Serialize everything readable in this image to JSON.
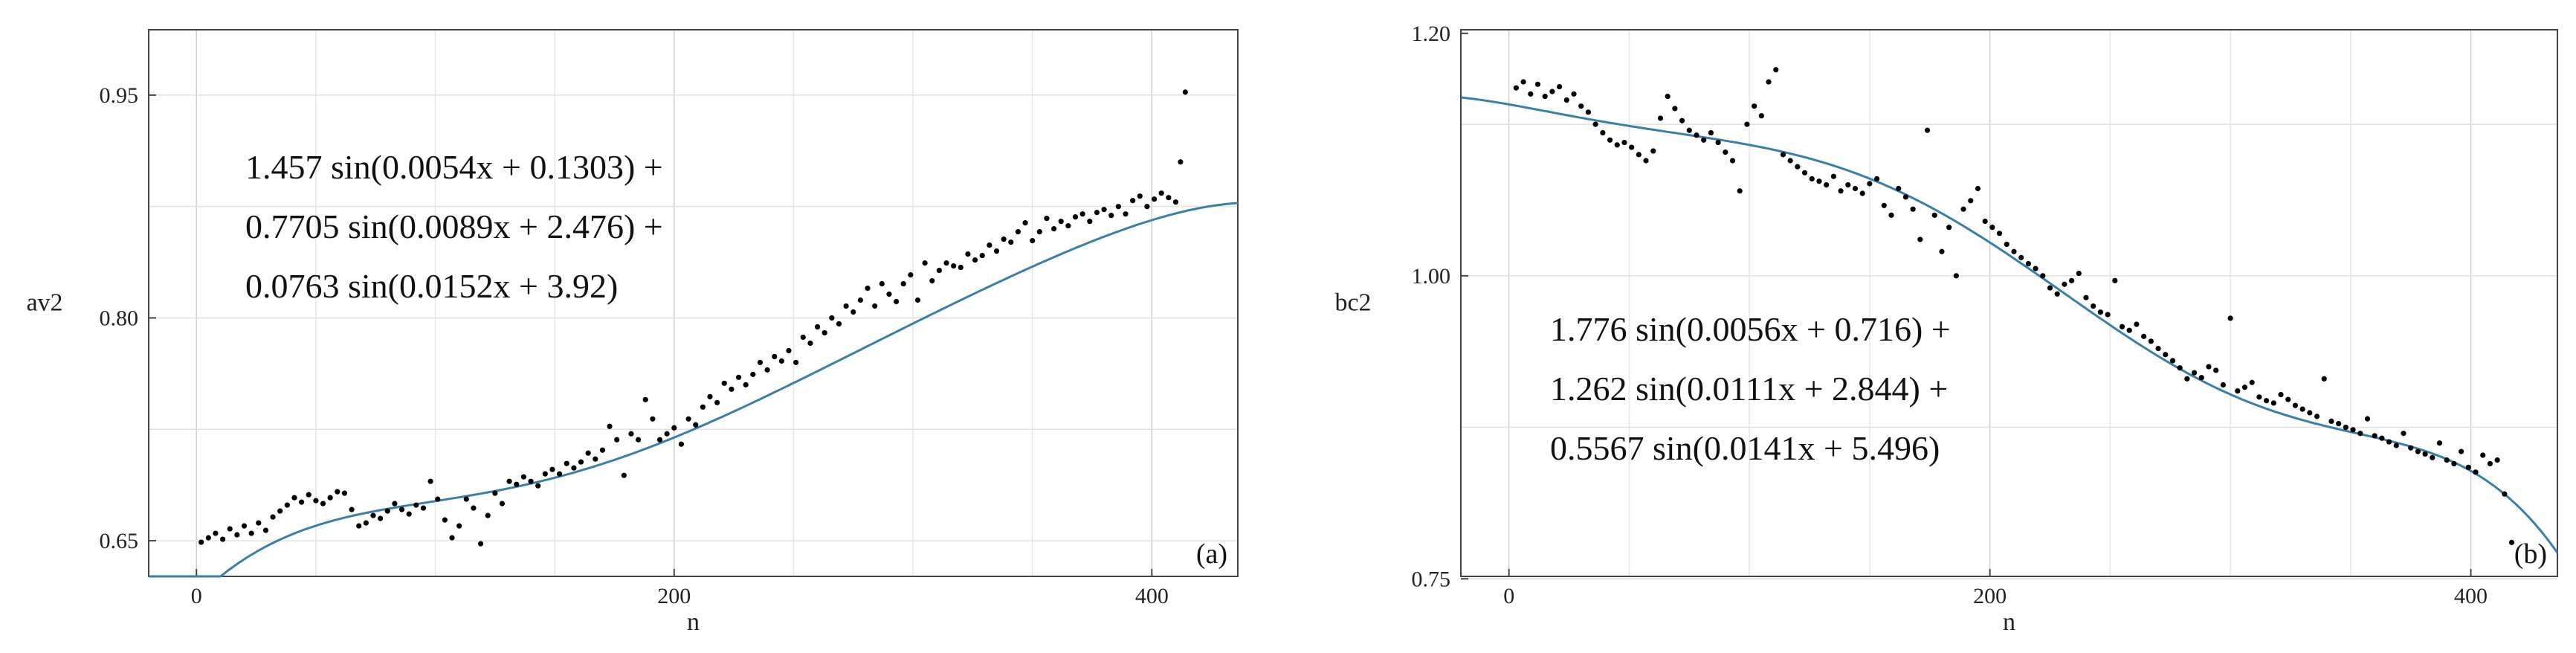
{
  "chart_data": [
    {
      "type": "scatter",
      "panel_label": "(a)",
      "xlabel": "n",
      "ylabel": "av2",
      "x_ticks": [
        0,
        200,
        400
      ],
      "y_ticks": [
        0.65,
        0.8,
        0.95
      ],
      "x_tick_labels": [
        "0",
        "200",
        "400"
      ],
      "y_tick_labels": [
        "0.65",
        "0.80",
        "0.95"
      ],
      "xlim": [
        -20,
        436
      ],
      "ylim": [
        0.626,
        0.994
      ],
      "grid": true,
      "equation_lines": [
        "1.457 sin(0.0054x + 0.1303) +",
        "0.7705 sin(0.0089x + 2.476) +",
        "0.0763 sin(0.0152x + 3.92)"
      ],
      "fit": {
        "terms": [
          [
            1.457,
            0.0054,
            0.1303
          ],
          [
            0.7705,
            0.0089,
            2.476
          ],
          [
            0.0763,
            0.0152,
            3.92
          ]
        ],
        "color": "#3a7fa8"
      },
      "points": {
        "color": "#000000",
        "x": [
          2,
          5,
          8,
          11,
          14,
          17,
          20,
          23,
          26,
          29,
          32,
          35,
          38,
          41,
          44,
          47,
          50,
          53,
          56,
          59,
          62,
          65,
          68,
          71,
          74,
          77,
          80,
          83,
          86,
          89,
          92,
          95,
          98,
          101,
          104,
          107,
          110,
          113,
          116,
          119,
          122,
          125,
          128,
          131,
          134,
          137,
          140,
          143,
          146,
          149,
          152,
          155,
          158,
          161,
          164,
          167,
          170,
          173,
          176,
          179,
          182,
          185,
          188,
          191,
          194,
          197,
          200,
          203,
          206,
          209,
          212,
          215,
          218,
          221,
          224,
          227,
          230,
          233,
          236,
          239,
          242,
          245,
          248,
          251,
          254,
          257,
          260,
          263,
          266,
          269,
          272,
          275,
          278,
          281,
          284,
          287,
          290,
          293,
          296,
          299,
          302,
          305,
          308,
          311,
          314,
          317,
          320,
          323,
          326,
          329,
          332,
          335,
          338,
          341,
          344,
          347,
          350,
          353,
          356,
          359,
          362,
          365,
          368,
          371,
          374,
          377,
          380,
          383,
          386,
          389,
          392,
          395,
          398,
          401,
          404,
          407,
          410,
          412,
          414
        ],
        "y": [
          0.649,
          0.652,
          0.655,
          0.651,
          0.658,
          0.654,
          0.66,
          0.655,
          0.662,
          0.657,
          0.666,
          0.67,
          0.674,
          0.679,
          0.676,
          0.681,
          0.677,
          0.675,
          0.679,
          0.683,
          0.682,
          0.671,
          0.66,
          0.662,
          0.667,
          0.665,
          0.67,
          0.675,
          0.671,
          0.668,
          0.674,
          0.672,
          0.69,
          0.678,
          0.664,
          0.652,
          0.66,
          0.678,
          0.672,
          0.648,
          0.667,
          0.682,
          0.675,
          0.69,
          0.688,
          0.693,
          0.69,
          0.687,
          0.695,
          0.698,
          0.695,
          0.702,
          0.699,
          0.703,
          0.709,
          0.705,
          0.711,
          0.727,
          0.718,
          0.694,
          0.722,
          0.718,
          0.745,
          0.732,
          0.718,
          0.722,
          0.726,
          0.715,
          0.732,
          0.728,
          0.74,
          0.747,
          0.743,
          0.756,
          0.752,
          0.76,
          0.755,
          0.762,
          0.77,
          0.765,
          0.774,
          0.771,
          0.778,
          0.77,
          0.787,
          0.783,
          0.794,
          0.79,
          0.8,
          0.796,
          0.808,
          0.804,
          0.812,
          0.82,
          0.808,
          0.823,
          0.816,
          0.811,
          0.823,
          0.829,
          0.812,
          0.837,
          0.825,
          0.832,
          0.837,
          0.835,
          0.834,
          0.843,
          0.839,
          0.842,
          0.849,
          0.845,
          0.853,
          0.851,
          0.858,
          0.864,
          0.852,
          0.858,
          0.867,
          0.86,
          0.865,
          0.862,
          0.868,
          0.87,
          0.865,
          0.871,
          0.873,
          0.869,
          0.875,
          0.87,
          0.879,
          0.882,
          0.875,
          0.88,
          0.884,
          0.881,
          0.878,
          0.905,
          0.952
        ]
      }
    },
    {
      "type": "scatter",
      "panel_label": "(b)",
      "xlabel": "n",
      "ylabel": "bc2",
      "x_ticks": [
        0,
        200,
        400
      ],
      "y_ticks": [
        0.75,
        1.0,
        1.2
      ],
      "x_tick_labels": [
        "0",
        "200",
        "400"
      ],
      "y_tick_labels": [
        "0.75",
        "1.00",
        "1.20"
      ],
      "xlim": [
        -20,
        436
      ],
      "ylim": [
        0.752,
        1.203
      ],
      "grid": true,
      "equation_lines": [
        "1.776 sin(0.0056x + 0.716) +",
        "1.262 sin(0.0111x + 2.844) +",
        "0.5567 sin(0.0141x + 5.496)"
      ],
      "fit": {
        "terms": [
          [
            1.776,
            0.0056,
            0.716
          ],
          [
            1.262,
            0.0111,
            2.844
          ],
          [
            0.5567,
            0.0141,
            5.496
          ]
        ],
        "color": "#3a7fa8"
      },
      "points": {
        "color": "#000000",
        "x": [
          3,
          6,
          9,
          12,
          15,
          18,
          21,
          24,
          27,
          30,
          33,
          36,
          39,
          42,
          45,
          48,
          51,
          54,
          57,
          60,
          63,
          66,
          69,
          72,
          75,
          78,
          81,
          84,
          87,
          90,
          93,
          96,
          99,
          102,
          105,
          108,
          111,
          114,
          117,
          120,
          123,
          126,
          129,
          132,
          135,
          138,
          141,
          144,
          147,
          150,
          153,
          156,
          159,
          162,
          165,
          168,
          171,
          174,
          177,
          180,
          183,
          186,
          189,
          192,
          195,
          198,
          201,
          204,
          207,
          210,
          213,
          216,
          219,
          222,
          225,
          228,
          231,
          234,
          237,
          240,
          243,
          246,
          249,
          252,
          255,
          258,
          261,
          264,
          267,
          270,
          273,
          276,
          279,
          282,
          285,
          288,
          291,
          294,
          297,
          300,
          303,
          306,
          309,
          312,
          315,
          318,
          321,
          324,
          327,
          330,
          333,
          336,
          339,
          342,
          345,
          348,
          351,
          354,
          357,
          360,
          363,
          366,
          369,
          372,
          375,
          378,
          381,
          384,
          387,
          390,
          393,
          396,
          399,
          402,
          405,
          408,
          411,
          414,
          417
        ],
        "y": [
          1.155,
          1.16,
          1.15,
          1.158,
          1.148,
          1.152,
          1.156,
          1.145,
          1.15,
          1.14,
          1.135,
          1.125,
          1.118,
          1.112,
          1.108,
          1.11,
          1.106,
          1.1,
          1.095,
          1.103,
          1.13,
          1.148,
          1.138,
          1.128,
          1.12,
          1.116,
          1.112,
          1.118,
          1.11,
          1.102,
          1.095,
          1.07,
          1.125,
          1.14,
          1.132,
          1.16,
          1.17,
          1.1,
          1.095,
          1.09,
          1.085,
          1.08,
          1.078,
          1.075,
          1.082,
          1.07,
          1.075,
          1.072,
          1.068,
          1.076,
          1.08,
          1.058,
          1.05,
          1.072,
          1.065,
          1.055,
          1.03,
          1.12,
          1.05,
          1.02,
          1.04,
          1.0,
          1.055,
          1.062,
          1.072,
          1.045,
          1.04,
          1.035,
          1.026,
          1.02,
          1.015,
          1.01,
          1.006,
          1.0,
          0.99,
          0.985,
          0.993,
          0.996,
          1.002,
          0.982,
          0.975,
          0.97,
          0.968,
          0.996,
          0.958,
          0.955,
          0.96,
          0.95,
          0.946,
          0.94,
          0.935,
          0.93,
          0.924,
          0.915,
          0.92,
          0.916,
          0.925,
          0.922,
          0.91,
          0.965,
          0.905,
          0.908,
          0.912,
          0.9,
          0.897,
          0.895,
          0.902,
          0.898,
          0.893,
          0.89,
          0.887,
          0.884,
          0.915,
          0.88,
          0.878,
          0.875,
          0.873,
          0.87,
          0.882,
          0.868,
          0.866,
          0.863,
          0.86,
          0.87,
          0.858,
          0.855,
          0.853,
          0.85,
          0.862,
          0.848,
          0.845,
          0.855,
          0.842,
          0.838,
          0.852,
          0.845,
          0.848,
          0.82,
          0.78
        ]
      }
    }
  ]
}
